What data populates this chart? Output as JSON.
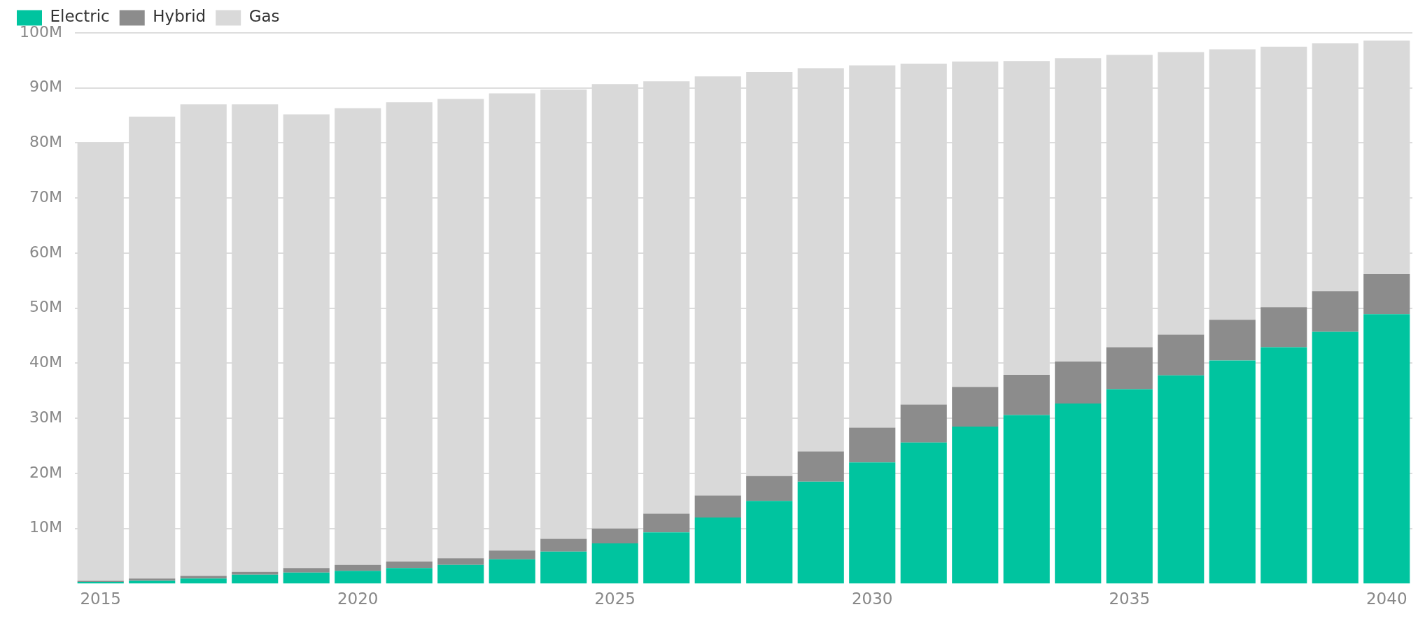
{
  "chart_data": {
    "type": "bar",
    "stacked": true,
    "categories": [
      "2015",
      null,
      null,
      null,
      null,
      "2020",
      null,
      null,
      null,
      null,
      "2025",
      null,
      null,
      null,
      null,
      "2030",
      null,
      null,
      null,
      null,
      "2035",
      null,
      null,
      null,
      null,
      "2040"
    ],
    "series": [
      {
        "name": "Electric",
        "color": "#00c49f",
        "values": [
          0.3,
          0.5,
          0.9,
          1.6,
          2.0,
          2.3,
          2.8,
          3.4,
          4.4,
          5.8,
          7.3,
          9.3,
          12.0,
          15.0,
          18.5,
          22.0,
          25.6,
          28.5,
          30.6,
          32.7,
          35.3,
          37.8,
          40.5,
          42.9,
          45.7,
          48.9
        ]
      },
      {
        "name": "Hybrid",
        "color": "#8c8c8c",
        "values": [
          0.2,
          0.4,
          0.5,
          0.5,
          0.8,
          1.1,
          1.2,
          1.2,
          1.6,
          2.3,
          2.7,
          3.4,
          4.0,
          4.5,
          5.5,
          6.3,
          6.9,
          7.2,
          7.3,
          7.6,
          7.6,
          7.4,
          7.4,
          7.3,
          7.4,
          7.3
        ]
      },
      {
        "name": "Gas",
        "color": "#d9d9d9",
        "values": [
          79.6,
          83.9,
          85.6,
          84.9,
          82.4,
          82.9,
          83.4,
          83.4,
          83.0,
          81.6,
          80.7,
          78.5,
          76.1,
          73.4,
          69.6,
          65.8,
          61.9,
          59.1,
          57.0,
          55.1,
          53.1,
          51.3,
          49.1,
          47.3,
          45.0,
          42.4
        ]
      }
    ],
    "ylim": [
      0,
      100
    ],
    "yticks": [
      {
        "value": 10,
        "label": "10M"
      },
      {
        "value": 20,
        "label": "20M"
      },
      {
        "value": 30,
        "label": "30M"
      },
      {
        "value": 40,
        "label": "40M"
      },
      {
        "value": 50,
        "label": "50M"
      },
      {
        "value": 60,
        "label": "60M"
      },
      {
        "value": 70,
        "label": "70M"
      },
      {
        "value": 80,
        "label": "80M"
      },
      {
        "value": 90,
        "label": "90M"
      },
      {
        "value": 100,
        "label": "100M"
      }
    ],
    "grid": "y",
    "legend": "top left"
  }
}
